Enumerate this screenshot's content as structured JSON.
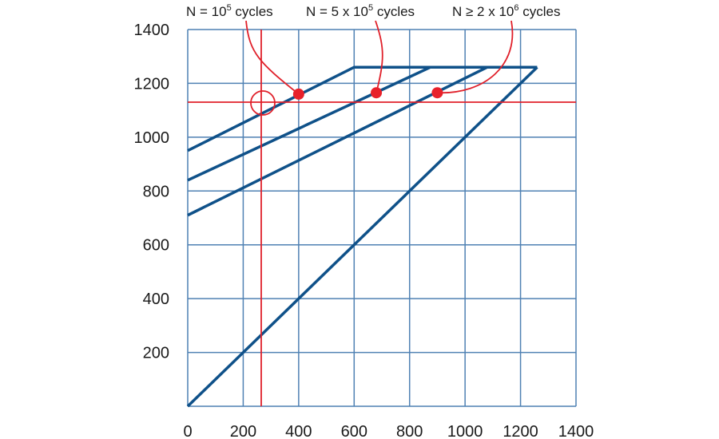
{
  "chart_data": {
    "type": "line",
    "title": "",
    "xlabel": "",
    "ylabel": "",
    "xlim": [
      0,
      1400
    ],
    "ylim": [
      0,
      1400
    ],
    "grid": true,
    "x_ticks": [
      0,
      200,
      400,
      600,
      800,
      1000,
      1200,
      1400
    ],
    "y_ticks": [
      200,
      400,
      600,
      800,
      1000,
      1200,
      1400
    ],
    "series": [
      {
        "points": [
          [
            0,
            0
          ],
          [
            1260,
            1260
          ]
        ]
      },
      {
        "points": [
          [
            0,
            950
          ],
          [
            600,
            1260
          ],
          [
            1260,
            1260
          ]
        ]
      },
      {
        "points": [
          [
            0,
            840
          ],
          [
            875,
            1260
          ]
        ]
      },
      {
        "points": [
          [
            0,
            710
          ],
          [
            1080,
            1260
          ]
        ]
      }
    ],
    "reference_lines": {
      "x": 265,
      "y": 1130
    },
    "marker_circle": {
      "x": 265,
      "y": 1130
    },
    "annotations": [
      {
        "parts": [
          "N = 10",
          "5",
          " cycles"
        ],
        "point": [
          400,
          1160
        ]
      },
      {
        "parts": [
          "N = 5 x 10",
          "5",
          " cycles"
        ],
        "point": [
          680,
          1165
        ]
      },
      {
        "parts": [
          "N ≥ 2 x 10",
          "6",
          " cycles"
        ],
        "point": [
          900,
          1165
        ]
      }
    ],
    "colors": {
      "grid": "#4f81b3",
      "series": "#0f5189",
      "reference": "#e0202a",
      "point": "#e8202a",
      "text": "#1a1a1a"
    }
  }
}
